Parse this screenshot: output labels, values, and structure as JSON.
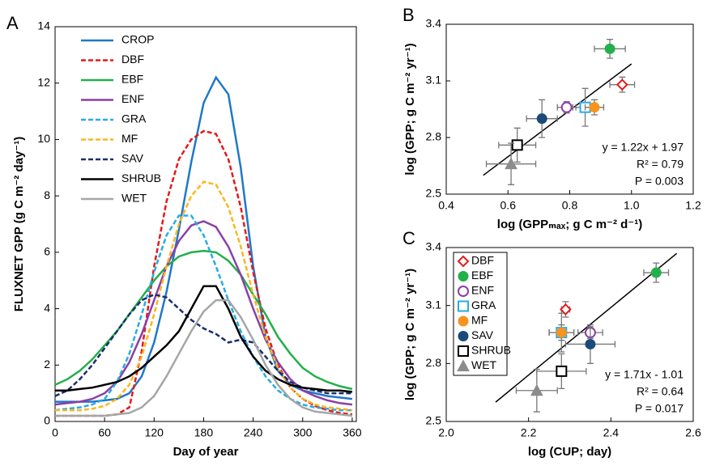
{
  "chart_data": [
    {
      "type": "line",
      "panel": "A",
      "y_label": "FLUXNET GPP (g C m⁻² day⁻¹)",
      "x_label": "Day of year",
      "xlim": [
        0,
        365
      ],
      "xticks": [
        0,
        60,
        120,
        180,
        240,
        300,
        360
      ],
      "ylim": [
        0,
        14
      ],
      "yticks": [
        0,
        2,
        4,
        6,
        8,
        10,
        12,
        14
      ],
      "legend": "upper left",
      "x": [
        0,
        15,
        30,
        45,
        60,
        75,
        90,
        105,
        120,
        135,
        150,
        165,
        180,
        195,
        210,
        225,
        240,
        255,
        270,
        285,
        300,
        315,
        330,
        345,
        360
      ],
      "series": [
        {
          "name": "CROP",
          "color": "#1f78c8",
          "style": "solid",
          "values": [
            0.7,
            0.7,
            0.7,
            0.7,
            0.75,
            0.8,
            1.0,
            1.6,
            2.8,
            4.6,
            6.8,
            9.2,
            11.3,
            12.2,
            11.6,
            9.0,
            5.5,
            3.0,
            1.8,
            1.3,
            1.1,
            1.0,
            0.9,
            0.85,
            0.8
          ]
        },
        {
          "name": "DBF",
          "color": "#e31a1c",
          "style": "dashed",
          "values": [
            0.2,
            0.2,
            0.2,
            0.2,
            0.2,
            0.25,
            0.5,
            2.5,
            5.5,
            7.8,
            9.3,
            10.0,
            10.3,
            10.2,
            9.3,
            7.6,
            5.3,
            3.3,
            2.0,
            1.2,
            0.8,
            0.55,
            0.4,
            0.3,
            0.25
          ]
        },
        {
          "name": "EBF",
          "color": "#22b04b",
          "style": "solid",
          "values": [
            1.3,
            1.5,
            1.8,
            2.2,
            2.7,
            3.2,
            3.8,
            4.4,
            5.0,
            5.5,
            5.85,
            6.0,
            6.05,
            6.0,
            5.7,
            5.2,
            4.5,
            3.8,
            3.0,
            2.4,
            1.9,
            1.6,
            1.4,
            1.25,
            1.15
          ]
        },
        {
          "name": "ENF",
          "color": "#8b3fa8",
          "style": "solid",
          "values": [
            0.6,
            0.65,
            0.7,
            0.8,
            1.0,
            1.4,
            2.1,
            3.1,
            4.3,
            5.5,
            6.4,
            6.95,
            7.1,
            6.9,
            6.2,
            5.2,
            4.0,
            2.9,
            2.1,
            1.5,
            1.1,
            0.9,
            0.75,
            0.65,
            0.6
          ]
        },
        {
          "name": "GRA",
          "color": "#29abe2",
          "style": "dashed",
          "values": [
            0.4,
            0.45,
            0.5,
            0.6,
            0.8,
            1.4,
            2.4,
            3.8,
            5.3,
            6.6,
            7.3,
            7.3,
            6.6,
            5.5,
            4.3,
            3.2,
            2.3,
            1.6,
            1.1,
            0.8,
            0.6,
            0.5,
            0.45,
            0.4,
            0.4
          ]
        },
        {
          "name": "MF",
          "color": "#f9b71e",
          "style": "dashed",
          "values": [
            0.4,
            0.4,
            0.4,
            0.45,
            0.55,
            0.8,
            1.3,
            2.3,
            3.8,
            5.5,
            7.0,
            8.0,
            8.5,
            8.4,
            7.6,
            6.2,
            4.5,
            3.0,
            1.9,
            1.2,
            0.8,
            0.6,
            0.5,
            0.45,
            0.4
          ]
        },
        {
          "name": "SAV",
          "color": "#1a2e6c",
          "style": "dashed",
          "values": [
            0.9,
            1.1,
            1.5,
            2.0,
            2.6,
            3.2,
            3.8,
            4.3,
            4.5,
            4.4,
            4.0,
            3.6,
            3.3,
            3.1,
            2.8,
            2.9,
            2.8,
            2.3,
            1.8,
            1.4,
            1.2,
            1.1,
            1.0,
            1.0,
            1.0
          ]
        },
        {
          "name": "SHRUB",
          "color": "#000000",
          "style": "solid",
          "values": [
            1.1,
            1.1,
            1.15,
            1.2,
            1.3,
            1.4,
            1.6,
            1.9,
            2.3,
            2.7,
            3.2,
            4.0,
            4.8,
            4.8,
            4.0,
            3.0,
            2.3,
            1.8,
            1.5,
            1.3,
            1.2,
            1.15,
            1.1,
            1.1,
            1.05
          ]
        },
        {
          "name": "WET",
          "color": "#a6a6a6",
          "style": "solid",
          "values": [
            0.2,
            0.2,
            0.2,
            0.2,
            0.2,
            0.25,
            0.3,
            0.5,
            0.9,
            1.6,
            2.4,
            3.2,
            3.9,
            4.3,
            4.3,
            3.7,
            2.9,
            2.0,
            1.3,
            0.8,
            0.5,
            0.35,
            0.3,
            0.25,
            0.2
          ]
        }
      ]
    },
    {
      "type": "scatter",
      "panel": "B",
      "y_label": "log (GPP; g C m⁻² yr⁻¹)",
      "x_label": "log (GPPₘₐₓ; g C m⁻² d⁻¹)",
      "xlim": [
        0.4,
        1.2
      ],
      "xticks": [
        0.4,
        0.6,
        0.8,
        {
          "value": 1,
          "label": "1.0"
        },
        1.2
      ],
      "ylim": [
        2.5,
        3.4
      ],
      "yticks": [
        2.5,
        2.8,
        3.1,
        3.4
      ],
      "x": [
        0.97,
        0.93,
        0.79,
        0.85,
        0.88,
        0.71,
        0.63,
        0.61
      ],
      "values": [
        3.08,
        3.27,
        2.96,
        2.96,
        2.96,
        2.9,
        2.76,
        2.66
      ],
      "xerr": [
        0.04,
        0.05,
        0.03,
        0.04,
        0.03,
        0.05,
        0.06,
        0.08
      ],
      "yerr": [
        0.04,
        0.05,
        0.03,
        0.1,
        0.04,
        0.1,
        0.09,
        0.11
      ],
      "colors": [
        "#e31a1c",
        "#22b04b",
        "#8b3fa8",
        "#29abe2",
        "#f7941d",
        "#1a4a7a",
        "#000000",
        "#8c8c8c"
      ],
      "markers": [
        "diamond-open",
        "circle",
        "circle-open",
        "square-open",
        "circle",
        "circle",
        "square-open",
        "triangle"
      ],
      "fit": {
        "x": [
          0.52,
          1.0
        ],
        "values": [
          2.6,
          3.19
        ]
      },
      "annotations": [
        "y = 1.22x + 1.97",
        "R² = 0.79",
        "P = 0.003"
      ]
    },
    {
      "type": "scatter",
      "panel": "C",
      "y_label": "log (GPP; g C m⁻² yr⁻¹)",
      "x_label": "log (CUP; day)",
      "xlim": [
        2.0,
        2.6
      ],
      "xticks": [
        {
          "value": 2,
          "label": "2.0"
        },
        2.2,
        2.4,
        2.6
      ],
      "ylim": [
        2.5,
        3.4
      ],
      "yticks": [
        2.5,
        2.8,
        3.1,
        3.4
      ],
      "names": [
        "DBF",
        "EBF",
        "ENF",
        "GRA",
        "MF",
        "SAV",
        "SHRUB",
        "WET"
      ],
      "x": [
        2.29,
        2.51,
        2.35,
        2.28,
        2.28,
        2.35,
        2.28,
        2.22
      ],
      "values": [
        3.08,
        3.27,
        2.96,
        2.96,
        2.96,
        2.9,
        2.76,
        2.66
      ],
      "xerr": [
        0.01,
        0.03,
        0.03,
        0.03,
        0.03,
        0.06,
        0.06,
        0.05
      ],
      "yerr": [
        0.04,
        0.05,
        0.03,
        0.1,
        0.04,
        0.1,
        0.09,
        0.11
      ],
      "colors": [
        "#e31a1c",
        "#22b04b",
        "#8b3fa8",
        "#29abe2",
        "#f7941d",
        "#1a4a7a",
        "#000000",
        "#8c8c8c"
      ],
      "markers": [
        "diamond-open",
        "circle",
        "circle-open",
        "square-open",
        "circle",
        "circle",
        "square-open",
        "triangle"
      ],
      "fit": {
        "x": [
          2.12,
          2.56
        ],
        "values": [
          2.6,
          3.37
        ]
      },
      "annotations": [
        "y = 1.71x - 1.01",
        "R² = 0.64",
        "P = 0.017"
      ]
    }
  ]
}
